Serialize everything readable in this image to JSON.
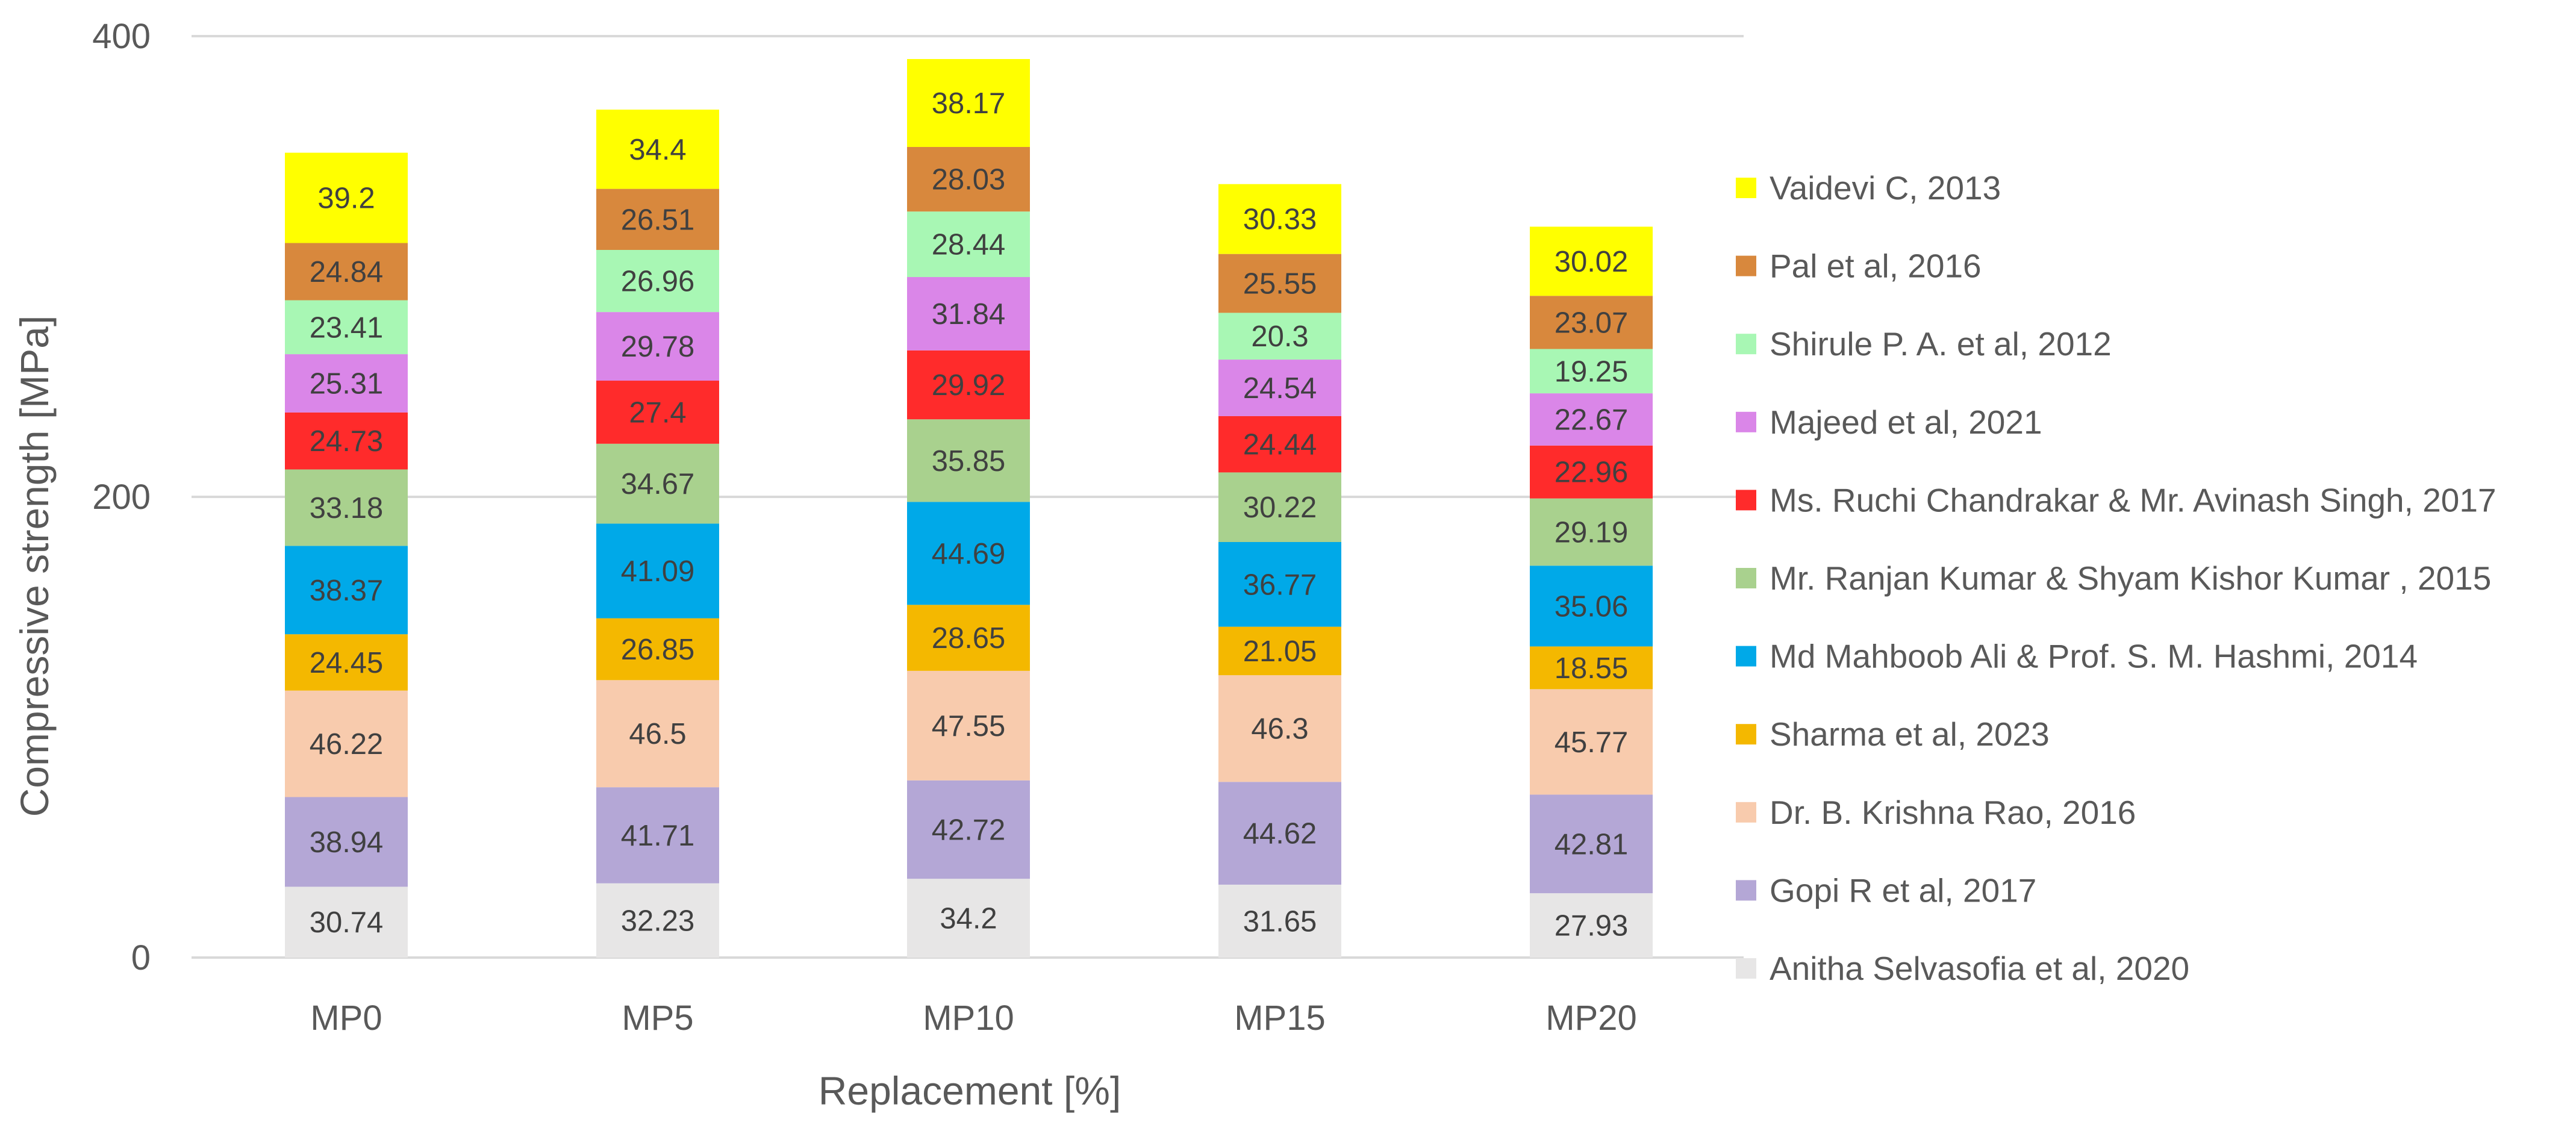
{
  "chart_data": {
    "type": "stacked-bar",
    "title": "",
    "xlabel": "Replacement [%]",
    "ylabel": "Compressive strength [MPa]",
    "ylim": [
      0,
      400
    ],
    "yticks": [
      0,
      200,
      400
    ],
    "grid": true,
    "legend_position": "right",
    "categories": [
      "MP0",
      "MP5",
      "MP10",
      "MP15",
      "MP20"
    ],
    "series": [
      {
        "name": "Anitha Selvasofia et al, 2020",
        "color": "#E7E6E6",
        "values": [
          30.74,
          32.23,
          34.2,
          31.65,
          27.93
        ]
      },
      {
        "name": "Gopi R et al, 2017",
        "color": "#B4A7D6",
        "values": [
          38.94,
          41.71,
          42.72,
          44.62,
          42.81
        ]
      },
      {
        "name": "Dr. B. Krishna Rao, 2016",
        "color": "#F8CBAD",
        "values": [
          46.22,
          46.5,
          47.55,
          46.3,
          45.77
        ]
      },
      {
        "name": "Sharma et al, 2023",
        "color": "#F4B800",
        "values": [
          24.45,
          26.85,
          28.65,
          21.05,
          18.55
        ]
      },
      {
        "name": "Md Mahboob Ali & Prof. S. M. Hashmi, 2014",
        "color": "#00A9E8",
        "values": [
          38.37,
          41.09,
          44.69,
          36.77,
          35.06
        ]
      },
      {
        "name": "Mr. Ranjan Kumar & Shyam Kishor Kumar , 2015",
        "color": "#A9D18E",
        "values": [
          33.18,
          34.67,
          35.85,
          30.22,
          29.19
        ]
      },
      {
        "name": "Ms. Ruchi Chandrakar & Mr. Avinash Singh, 2017",
        "color": "#FF2B2B",
        "values": [
          24.73,
          27.4,
          29.92,
          24.44,
          22.96
        ]
      },
      {
        "name": "Majeed et al, 2021",
        "color": "#DA86E8",
        "values": [
          25.31,
          29.78,
          31.84,
          24.54,
          22.67
        ]
      },
      {
        "name": "Shirule P. A. et al, 2012",
        "color": "#A8F7B4",
        "values": [
          23.41,
          26.96,
          28.44,
          20.3,
          19.25
        ]
      },
      {
        "name": "Pal et al, 2016",
        "color": "#D8883D",
        "values": [
          24.84,
          26.51,
          28.03,
          25.55,
          23.07
        ]
      },
      {
        "name": "Vaidevi C, 2013",
        "color": "#FFFF00",
        "values": [
          39.2,
          34.4,
          38.17,
          30.33,
          30.02
        ]
      }
    ],
    "colors": {
      "gridline": "#D9D9D9",
      "axis_text": "#595959",
      "data_label": "#404040"
    }
  }
}
